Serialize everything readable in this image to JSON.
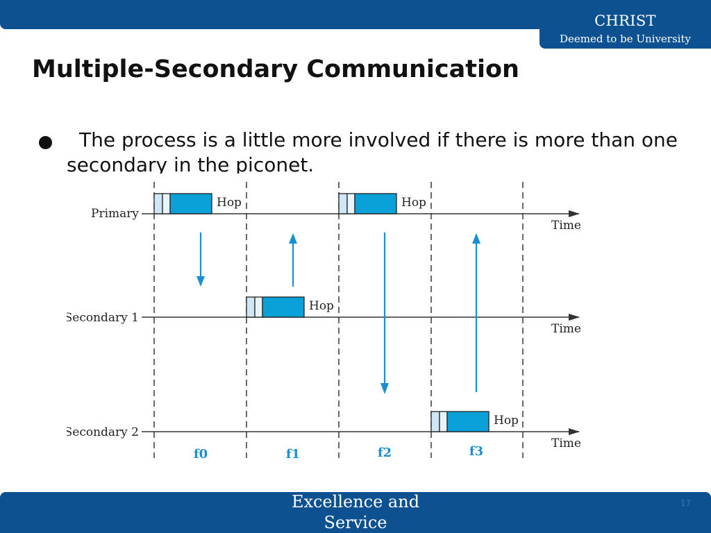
{
  "header": {
    "brand_name": "CHRIST",
    "brand_sub": "Deemed to be University"
  },
  "slide": {
    "title": "Multiple-Secondary Communication",
    "bullet": "The process is a little more involved if there is more than one secondary in the piconet."
  },
  "diagram": {
    "lanes": [
      "Primary",
      "Secondary 1",
      "Secondary 2"
    ],
    "time_label": "Time",
    "hop_label": "Hop",
    "slots": [
      "f0",
      "f1",
      "f2",
      "f3"
    ],
    "colors": {
      "packet_fill": "#0aa0d8",
      "header_fill": "#cfe6f5",
      "arrow": "#1a8fd0",
      "slot_label": "#1a8fd0"
    }
  },
  "footer": {
    "text": "Excellence and Service",
    "page_number": "17"
  }
}
